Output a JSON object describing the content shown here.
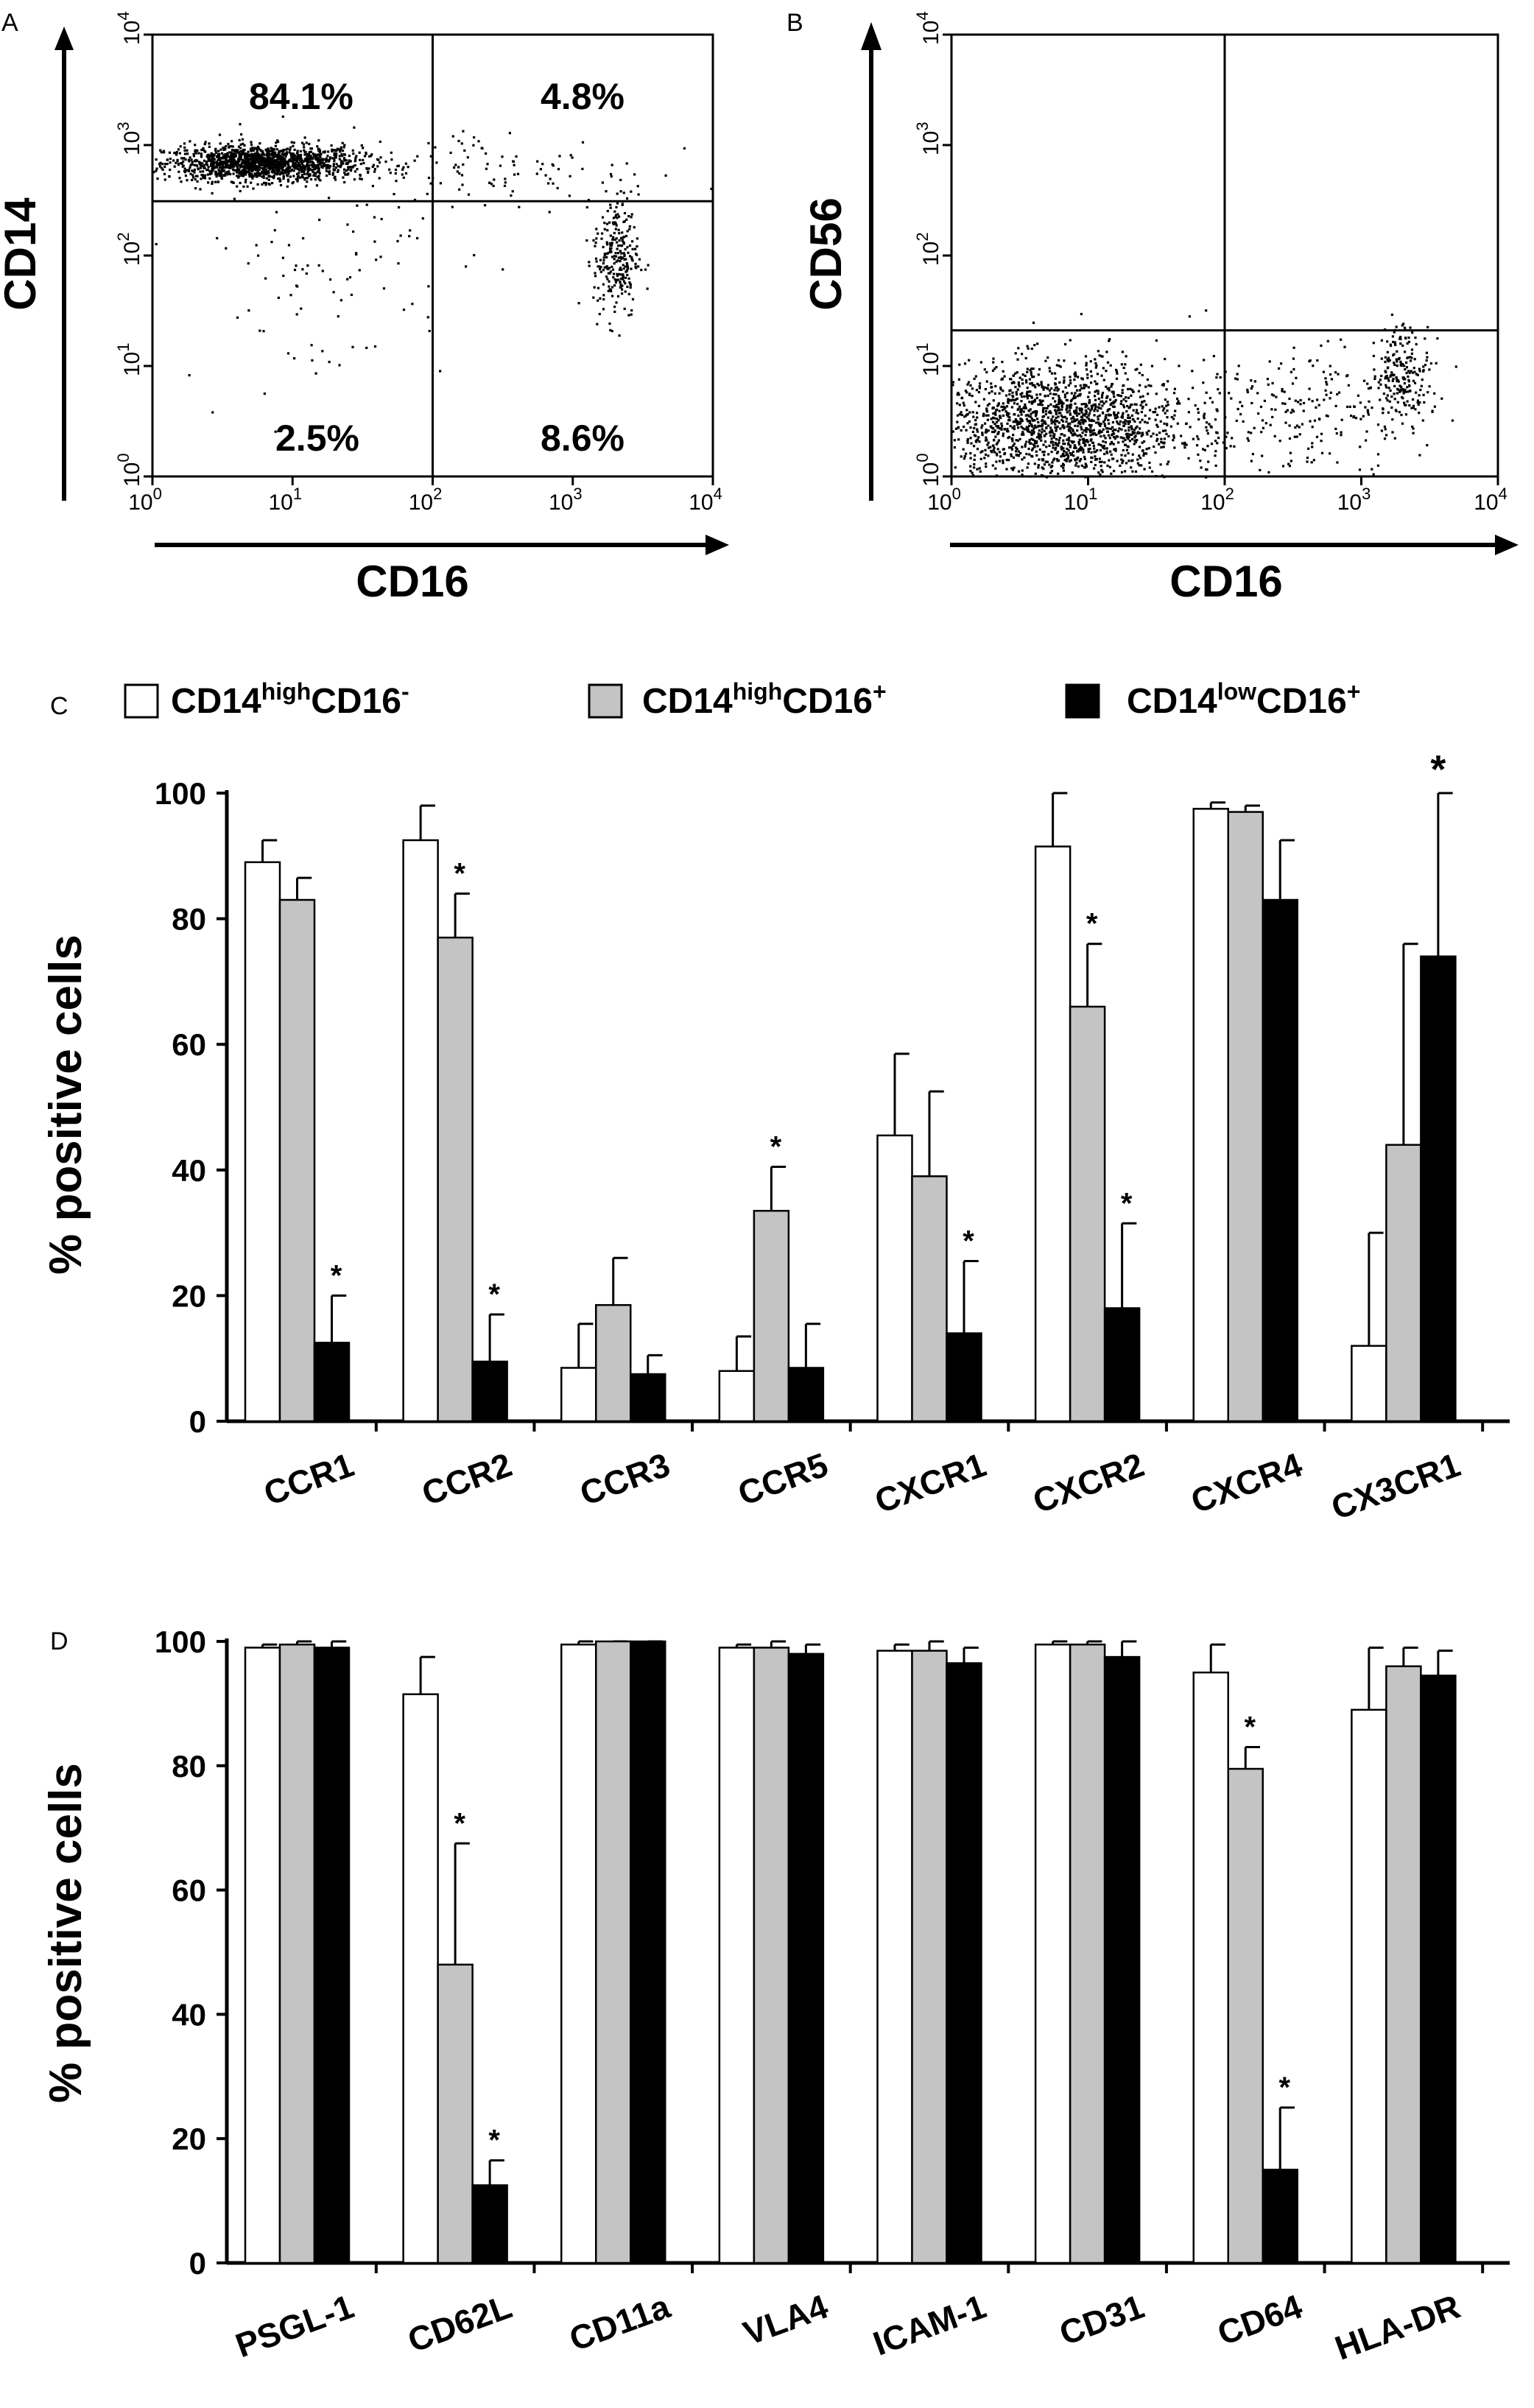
{
  "chart_data": [
    {
      "panel_label": "A",
      "type": "scatter",
      "xlabel": "CD16",
      "ylabel": "CD14",
      "x_scale": "log",
      "y_scale": "log",
      "xlim": [
        1,
        10000
      ],
      "ylim": [
        1,
        10000
      ],
      "x_tick_labels": [
        {
          "base": "10",
          "exp": "0"
        },
        {
          "base": "10",
          "exp": "1"
        },
        {
          "base": "10",
          "exp": "2"
        },
        {
          "base": "10",
          "exp": "3"
        },
        {
          "base": "10",
          "exp": "4"
        }
      ],
      "y_tick_labels": [
        {
          "base": "10",
          "exp": "0"
        },
        {
          "base": "10",
          "exp": "1"
        },
        {
          "base": "10",
          "exp": "2"
        },
        {
          "base": "10",
          "exp": "3"
        },
        {
          "base": "10",
          "exp": "4"
        }
      ],
      "gate": {
        "x": 100,
        "y": 310
      },
      "quadrants": {
        "upper_left": "84.1%",
        "upper_right": "4.8%",
        "lower_left": "2.5%",
        "lower_right": "8.6%"
      },
      "clusters": [
        {
          "x_center": 6,
          "y_center": 700,
          "x_spread": 0.35,
          "y_spread": 0.08,
          "count": 1500
        },
        {
          "x_center": 2000,
          "y_center": 100,
          "x_spread": 0.08,
          "y_spread": 0.28,
          "count": 260
        },
        {
          "x_center": 300,
          "y_center": 600,
          "x_spread": 0.55,
          "y_spread": 0.2,
          "count": 110
        },
        {
          "x_center": 15,
          "y_center": 80,
          "x_spread": 0.5,
          "y_spread": 0.55,
          "count": 90
        }
      ]
    },
    {
      "panel_label": "B",
      "type": "scatter",
      "xlabel": "CD16",
      "ylabel": "CD56",
      "x_scale": "log",
      "y_scale": "log",
      "xlim": [
        1,
        10000
      ],
      "ylim": [
        1,
        10000
      ],
      "x_tick_labels": [
        {
          "base": "10",
          "exp": "0"
        },
        {
          "base": "10",
          "exp": "1"
        },
        {
          "base": "10",
          "exp": "2"
        },
        {
          "base": "10",
          "exp": "3"
        },
        {
          "base": "10",
          "exp": "4"
        }
      ],
      "y_tick_labels": [
        {
          "base": "10",
          "exp": "0"
        },
        {
          "base": "10",
          "exp": "1"
        },
        {
          "base": "10",
          "exp": "2"
        },
        {
          "base": "10",
          "exp": "3"
        },
        {
          "base": "10",
          "exp": "4"
        }
      ],
      "gate": {
        "x": 100,
        "y": 21
      },
      "clusters": [
        {
          "x_center": 6,
          "y_center": 3,
          "x_spread": 0.45,
          "y_spread": 0.28,
          "count": 1700
        },
        {
          "x_center": 2000,
          "y_center": 9,
          "x_spread": 0.1,
          "y_spread": 0.22,
          "count": 200
        },
        {
          "x_center": 300,
          "y_center": 4,
          "x_spread": 0.5,
          "y_spread": 0.3,
          "count": 260
        }
      ]
    },
    {
      "panel_label": "C",
      "type": "bar",
      "ylabel": "% positive cells",
      "ylim": [
        0,
        100
      ],
      "y_ticks": [
        "0",
        "20",
        "40",
        "60",
        "80",
        "100"
      ],
      "categories": [
        "CCR1",
        "CCR2",
        "CCR3",
        "CCR5",
        "CXCR1",
        "CXCR2",
        "CXCR4",
        "CX3CR1"
      ],
      "series": [
        {
          "name": "CD14highCD16-",
          "color": "#ffffff",
          "values": [
            89,
            92.5,
            8.5,
            8,
            45.5,
            91.5,
            97.5,
            12
          ],
          "errors": [
            3.5,
            5.5,
            7,
            5.5,
            13,
            8.5,
            1,
            18
          ]
        },
        {
          "name": "CD14highCD16+",
          "color": "#c4c4c4",
          "values": [
            83,
            77,
            18.5,
            33.5,
            39,
            66,
            97,
            44
          ],
          "errors": [
            3.5,
            7,
            7.5,
            7,
            13.5,
            10,
            1,
            32
          ]
        },
        {
          "name": "CD14lowCD16+",
          "color": "#000000",
          "values": [
            12.5,
            9.5,
            7.5,
            8.5,
            14,
            18,
            83,
            74
          ],
          "errors": [
            7.5,
            7.5,
            3,
            7,
            11.5,
            13.5,
            9.5,
            26
          ]
        }
      ],
      "significance": [
        {
          "category": "CCR1",
          "series": 2,
          "mark": "*"
        },
        {
          "category": "CCR2",
          "series": 1,
          "mark": "*"
        },
        {
          "category": "CCR2",
          "series": 2,
          "mark": "*"
        },
        {
          "category": "CCR5",
          "series": 1,
          "mark": "*"
        },
        {
          "category": "CXCR1",
          "series": 2,
          "mark": "*"
        },
        {
          "category": "CXCR2",
          "series": 1,
          "mark": "*"
        },
        {
          "category": "CXCR2",
          "series": 2,
          "mark": "*"
        },
        {
          "category": "CX3CR1",
          "series": 2,
          "mark": "*"
        }
      ]
    },
    {
      "panel_label": "D",
      "type": "bar",
      "ylabel": "% positive cells",
      "ylim": [
        0,
        100
      ],
      "y_ticks": [
        "0",
        "20",
        "40",
        "60",
        "80",
        "100"
      ],
      "categories": [
        "PSGL-1",
        "CD62L",
        "CD11a",
        "VLA4",
        "ICAM-1",
        "CD31",
        "CD64",
        "HLA-DR"
      ],
      "series": [
        {
          "name": "CD14highCD16-",
          "color": "#ffffff",
          "values": [
            99,
            91.5,
            99.5,
            99,
            98.5,
            99.5,
            95,
            89
          ],
          "errors": [
            0.5,
            6,
            0.5,
            0.5,
            1,
            0.5,
            4.5,
            10
          ]
        },
        {
          "name": "CD14highCD16+",
          "color": "#c4c4c4",
          "values": [
            99.5,
            48,
            100,
            99,
            98.5,
            99.5,
            79.5,
            96
          ],
          "errors": [
            0.5,
            19.5,
            0.3,
            1.5,
            1.5,
            1,
            3.5,
            3
          ]
        },
        {
          "name": "CD14lowCD16+",
          "color": "#000000",
          "values": [
            99,
            12.5,
            100,
            98,
            96.5,
            97.5,
            15,
            94.5
          ],
          "errors": [
            1.5,
            4,
            0.3,
            1.5,
            2.5,
            2.5,
            10,
            4
          ]
        }
      ],
      "significance": [
        {
          "category": "CD62L",
          "series": 1,
          "mark": "*"
        },
        {
          "category": "CD62L",
          "series": 2,
          "mark": "*"
        },
        {
          "category": "CD64",
          "series": 1,
          "mark": "*"
        },
        {
          "category": "CD64",
          "series": 2,
          "mark": "*"
        }
      ]
    }
  ],
  "legend": [
    {
      "base": "CD14",
      "sup1": "high",
      "mid": "CD16",
      "sup2": "-",
      "color": "#ffffff"
    },
    {
      "base": "CD14",
      "sup1": "high",
      "mid": "CD16",
      "sup2": "+",
      "color": "#c4c4c4"
    },
    {
      "base": "CD14",
      "sup1": "low",
      "mid": "CD16",
      "sup2": "+",
      "color": "#000000"
    }
  ]
}
